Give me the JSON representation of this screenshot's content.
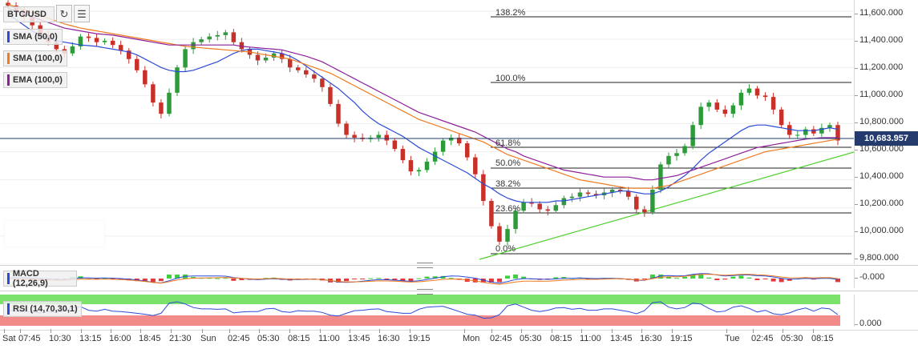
{
  "symbol": "BTC/USD",
  "toolbar": {
    "refresh_icon": "refresh-icon",
    "indicators_icon": "indicators-icon"
  },
  "indicators": [
    {
      "label": "SMA (50,0)",
      "color": "#2b4bd6"
    },
    {
      "label": "SMA (100,0)",
      "color": "#f07a1e"
    },
    {
      "label": "EMA (100,0)",
      "color": "#8e1f9a"
    }
  ],
  "current_price": "10,683.957",
  "price_axis": [
    "11,600.000",
    "11,400.000",
    "11,200.000",
    "11,000.000",
    "10,800.000",
    "10,600.000",
    "10,400.000",
    "10,200.000",
    "10,000.000",
    "9,800.000"
  ],
  "fib_levels": [
    "138.2%",
    "100.0%",
    "61.8%",
    "50.0%",
    "38.2%",
    "23.6%",
    "0.0%"
  ],
  "macd": {
    "label": "MACD (12,26,9)",
    "axis": "-0.000"
  },
  "rsi": {
    "label": "RSI (14,70,30,1)",
    "axis": "0.000"
  },
  "time_axis": [
    "Sat",
    "07:45",
    "10:30",
    "13:15",
    "16:00",
    "18:45",
    "21:30",
    "Sun",
    "02:45",
    "05:30",
    "08:15",
    "11:00",
    "13:45",
    "16:30",
    "19:15",
    "Mon",
    "02:45",
    "05:30",
    "08:15",
    "11:00",
    "13:45",
    "16:30",
    "19:15",
    "Tue",
    "02:45",
    "05:30",
    "08:15"
  ],
  "chart_data": {
    "type": "line",
    "title": "BTC/USD",
    "ylim": [
      9800,
      11680
    ],
    "close": [
      11640,
      11600,
      11560,
      11500,
      11430,
      11380,
      11330,
      11300,
      11350,
      11420,
      11410,
      11380,
      11390,
      11360,
      11320,
      11260,
      11180,
      11080,
      10950,
      10870,
      11020,
      11200,
      11330,
      11380,
      11400,
      11420,
      11430,
      11450,
      11380,
      11330,
      11290,
      11250,
      11270,
      11300,
      11260,
      11200,
      11180,
      11150,
      11120,
      11060,
      10940,
      10800,
      10720,
      10700,
      10690,
      10700,
      10720,
      10680,
      10620,
      10540,
      10460,
      10470,
      10530,
      10600,
      10680,
      10700,
      10660,
      10560,
      10440,
      10250,
      10070,
      9960,
      10050,
      10180,
      10240,
      10230,
      10190,
      10180,
      10220,
      10270,
      10280,
      10310,
      10300,
      10290,
      10310,
      10330,
      10320,
      10280,
      10190,
      10170,
      10330,
      10510,
      10570,
      10590,
      10640,
      10790,
      10920,
      10950,
      10900,
      10870,
      10930,
      11020,
      11050,
      11000,
      10990,
      10900,
      10790,
      10720,
      10720,
      10760,
      10730,
      10770,
      10790,
      10680
    ],
    "series": [
      {
        "name": "SMA (50,0)",
        "values": [
          11580,
          11540,
          11500,
          11460,
          11430,
          11410,
          11390,
          11380,
          11370,
          11360,
          11355,
          11350,
          11340,
          11330,
          11320,
          11310,
          11290,
          11260,
          11230,
          11200,
          11180,
          11170,
          11170,
          11180,
          11200,
          11220,
          11240,
          11270,
          11300,
          11320,
          11330,
          11330,
          11320,
          11310,
          11300,
          11280,
          11250,
          11210,
          11170,
          11130,
          11090,
          11050,
          11000,
          10950,
          10890,
          10840,
          10800,
          10770,
          10740,
          10710,
          10670,
          10630,
          10600,
          10570,
          10540,
          10510,
          10480,
          10450,
          10410,
          10370,
          10340,
          10300,
          10270,
          10250,
          10240,
          10240,
          10240,
          10240,
          10250,
          10250,
          10260,
          10270,
          10280,
          10290,
          10300,
          10310,
          10320,
          10320,
          10310,
          10300,
          10300,
          10320,
          10350,
          10390,
          10430,
          10480,
          10540,
          10590,
          10630,
          10670,
          10710,
          10750,
          10780,
          10790,
          10790,
          10780,
          10770,
          10760,
          10750,
          10750,
          10750,
          10760,
          10770,
          10760
        ]
      },
      {
        "name": "SMA (100,0)",
        "values": [
          11650,
          11630,
          11610,
          11590,
          11570,
          11550,
          11530,
          11510,
          11495,
          11480,
          11470,
          11460,
          11450,
          11440,
          11430,
          11420,
          11410,
          11400,
          11390,
          11380,
          11370,
          11360,
          11350,
          11345,
          11340,
          11335,
          11330,
          11325,
          11320,
          11315,
          11310,
          11300,
          11290,
          11280,
          11270,
          11260,
          11240,
          11220,
          11200,
          11180,
          11160,
          11130,
          11100,
          11070,
          11040,
          11010,
          10980,
          10950,
          10920,
          10890,
          10860,
          10830,
          10810,
          10790,
          10770,
          10750,
          10730,
          10710,
          10690,
          10670,
          10640,
          10610,
          10580,
          10560,
          10540,
          10520,
          10500,
          10480,
          10460,
          10440,
          10420,
          10400,
          10390,
          10380,
          10370,
          10360,
          10350,
          10340,
          10340,
          10340,
          10340,
          10350,
          10360,
          10380,
          10400,
          10420,
          10440,
          10460,
          10480,
          10500,
          10520,
          10540,
          10560,
          10580,
          10600,
          10610,
          10620,
          10630,
          10640,
          10650,
          10660,
          10670,
          10680,
          10690
        ]
      },
      {
        "name": "EMA (100,0)",
        "values": [
          11620,
          11600,
          11580,
          11560,
          11540,
          11520,
          11500,
          11480,
          11470,
          11460,
          11450,
          11440,
          11435,
          11430,
          11420,
          11410,
          11400,
          11390,
          11380,
          11370,
          11360,
          11360,
          11360,
          11360,
          11360,
          11360,
          11360,
          11360,
          11360,
          11350,
          11345,
          11340,
          11335,
          11330,
          11325,
          11310,
          11295,
          11280,
          11260,
          11240,
          11210,
          11180,
          11150,
          11120,
          11090,
          11060,
          11030,
          11000,
          10970,
          10940,
          10910,
          10880,
          10860,
          10840,
          10820,
          10800,
          10780,
          10760,
          10740,
          10710,
          10680,
          10650,
          10620,
          10600,
          10570,
          10550,
          10530,
          10510,
          10490,
          10470,
          10460,
          10450,
          10440,
          10430,
          10420,
          10420,
          10420,
          10420,
          10410,
          10400,
          10400,
          10410,
          10420,
          10430,
          10450,
          10470,
          10490,
          10510,
          10530,
          10550,
          10570,
          10590,
          10610,
          10630,
          10640,
          10650,
          10660,
          10670,
          10680,
          10690,
          10695,
          10700,
          10700,
          10700
        ]
      }
    ]
  }
}
